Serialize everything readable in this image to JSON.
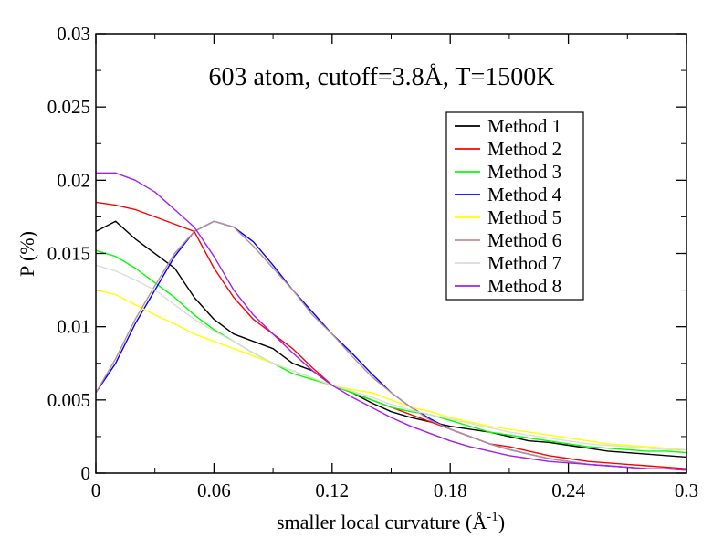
{
  "chart_data": {
    "type": "line",
    "title": "603 atom, cutoff=3.8Å, T=1500K",
    "xlabel": "smaller local curvature (Å",
    "xlabel_sup": "-1",
    "xlabel_close": ")",
    "ylabel": "P (%)",
    "xlim": [
      0,
      0.3
    ],
    "ylim": [
      0,
      0.03
    ],
    "xticks": [
      0,
      0.06,
      0.12,
      0.18,
      0.24,
      0.3
    ],
    "xtick_labels": [
      "0",
      "0.06",
      "0.12",
      "0.18",
      "0.24",
      "0.3"
    ],
    "yticks": [
      0,
      0.005,
      0.01,
      0.015,
      0.02,
      0.025,
      0.03
    ],
    "ytick_labels": [
      "0",
      "0.005",
      "0.01",
      "0.015",
      "0.02",
      "0.025",
      "0.03"
    ],
    "grid": false,
    "legend_position": "top-right",
    "x": [
      0,
      0.01,
      0.02,
      0.03,
      0.04,
      0.05,
      0.06,
      0.07,
      0.08,
      0.09,
      0.1,
      0.11,
      0.12,
      0.13,
      0.14,
      0.15,
      0.16,
      0.17,
      0.18,
      0.19,
      0.2,
      0.21,
      0.22,
      0.23,
      0.24,
      0.25,
      0.26,
      0.27,
      0.28,
      0.29,
      0.3
    ],
    "series": [
      {
        "name": "Method 1",
        "color": "#000000",
        "values": [
          0.0165,
          0.0172,
          0.016,
          0.015,
          0.014,
          0.012,
          0.0105,
          0.0095,
          0.009,
          0.0085,
          0.0075,
          0.007,
          0.006,
          0.0055,
          0.0048,
          0.0042,
          0.0038,
          0.0035,
          0.0032,
          0.003,
          0.0028,
          0.0025,
          0.0022,
          0.0021,
          0.0019,
          0.0017,
          0.0015,
          0.0014,
          0.0013,
          0.0012,
          0.0011
        ]
      },
      {
        "name": "Method 2",
        "color": "#ff0000",
        "values": [
          0.0185,
          0.0183,
          0.018,
          0.0175,
          0.017,
          0.0165,
          0.014,
          0.012,
          0.0105,
          0.0095,
          0.0085,
          0.0072,
          0.006,
          0.0055,
          0.005,
          0.0045,
          0.004,
          0.0035,
          0.003,
          0.0025,
          0.002,
          0.0018,
          0.0015,
          0.0012,
          0.001,
          0.0008,
          0.0007,
          0.0006,
          0.0005,
          0.0004,
          0.0003
        ]
      },
      {
        "name": "Method 3",
        "color": "#00ff00",
        "values": [
          0.0152,
          0.0148,
          0.014,
          0.013,
          0.012,
          0.0108,
          0.0098,
          0.009,
          0.0082,
          0.0075,
          0.0068,
          0.0064,
          0.006,
          0.0055,
          0.005,
          0.0045,
          0.0042,
          0.004,
          0.0036,
          0.0032,
          0.0028,
          0.0026,
          0.0024,
          0.0022,
          0.002,
          0.0018,
          0.0017,
          0.0016,
          0.0015,
          0.0015,
          0.0014
        ]
      },
      {
        "name": "Method 4",
        "color": "#0000ff",
        "values": [
          0.0055,
          0.0075,
          0.0102,
          0.0125,
          0.0148,
          0.0165,
          0.0172,
          0.0168,
          0.0158,
          0.0142,
          0.0125,
          0.011,
          0.0095,
          0.0082,
          0.0068,
          0.0055,
          0.0045,
          0.0037,
          0.003,
          0.0025,
          0.002,
          0.0016,
          0.0013,
          0.001,
          0.0008,
          0.0006,
          0.0005,
          0.0004,
          0.0003,
          0.0003,
          0.0002
        ]
      },
      {
        "name": "Method 5",
        "color": "#ffff00",
        "values": [
          0.0125,
          0.0122,
          0.0115,
          0.0108,
          0.0102,
          0.0095,
          0.009,
          0.0085,
          0.008,
          0.0075,
          0.007,
          0.0065,
          0.006,
          0.0057,
          0.0055,
          0.005,
          0.0045,
          0.0042,
          0.0038,
          0.0035,
          0.0032,
          0.003,
          0.0028,
          0.0026,
          0.0024,
          0.0022,
          0.002,
          0.0019,
          0.0018,
          0.0017,
          0.0016
        ]
      },
      {
        "name": "Method 6",
        "color": "#bc8f8f",
        "values": [
          0.0055,
          0.0078,
          0.0105,
          0.0128,
          0.015,
          0.0165,
          0.0172,
          0.0168,
          0.0155,
          0.014,
          0.0125,
          0.0108,
          0.0095,
          0.008,
          0.0066,
          0.0055,
          0.0045,
          0.0036,
          0.003,
          0.0025,
          0.002,
          0.0016,
          0.0013,
          0.001,
          0.0008,
          0.0006,
          0.0005,
          0.0004,
          0.0003,
          0.0003,
          0.0002
        ]
      },
      {
        "name": "Method 7",
        "color": "#dcdcdc",
        "values": [
          0.0142,
          0.0138,
          0.0132,
          0.0125,
          0.0115,
          0.0105,
          0.0097,
          0.009,
          0.0082,
          0.0075,
          0.007,
          0.0065,
          0.006,
          0.0056,
          0.0052,
          0.0047,
          0.0043,
          0.004,
          0.0037,
          0.0034,
          0.0031,
          0.0028,
          0.0026,
          0.0024,
          0.0022,
          0.002,
          0.0019,
          0.0018,
          0.0017,
          0.0016,
          0.0016
        ]
      },
      {
        "name": "Method 8",
        "color": "#a020f0",
        "values": [
          0.0205,
          0.0205,
          0.02,
          0.0192,
          0.018,
          0.0168,
          0.0148,
          0.0125,
          0.0108,
          0.0095,
          0.0082,
          0.007,
          0.006,
          0.0052,
          0.0045,
          0.0038,
          0.0032,
          0.0027,
          0.0022,
          0.0018,
          0.0015,
          0.0012,
          0.001,
          0.0008,
          0.0007,
          0.0006,
          0.0005,
          0.0004,
          0.0003,
          0.0003,
          0.0002
        ]
      }
    ]
  }
}
